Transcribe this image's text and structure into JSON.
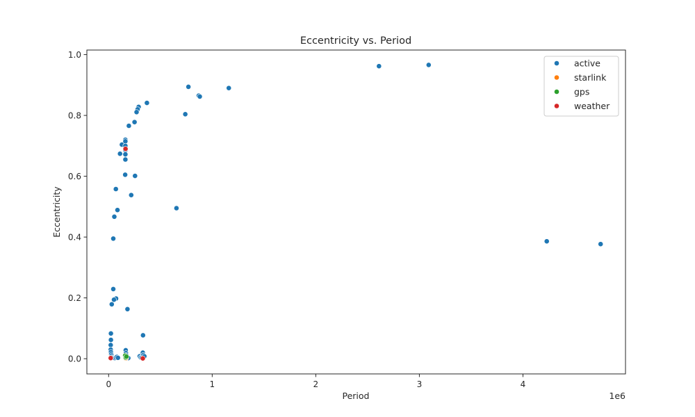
{
  "chart_data": {
    "type": "scatter",
    "title": "Eccentricity vs. Period",
    "xlabel": "Period",
    "ylabel": "Eccentricity",
    "x_offset_label": "1e6",
    "xlim": [
      -210000,
      4990000
    ],
    "ylim": [
      -0.05,
      1.015
    ],
    "x_ticks": [
      0,
      1000000,
      2000000,
      3000000,
      4000000
    ],
    "x_tick_labels": [
      "0",
      "1",
      "2",
      "3",
      "4"
    ],
    "y_ticks": [
      0.0,
      0.2,
      0.4,
      0.6,
      0.8,
      1.0
    ],
    "y_tick_labels": [
      "0.0",
      "0.2",
      "0.4",
      "0.6",
      "0.8",
      "1.0"
    ],
    "grid": false,
    "legend_position": "top-right",
    "series": [
      {
        "name": "active",
        "color": "#1f77b4",
        "points": [
          [
            3090000,
            0.966
          ],
          [
            2610000,
            0.962
          ],
          [
            4230000,
            0.386
          ],
          [
            4750000,
            0.377
          ],
          [
            770000,
            0.894
          ],
          [
            1160000,
            0.89
          ],
          [
            870000,
            0.865
          ],
          [
            880000,
            0.862
          ],
          [
            740000,
            0.804
          ],
          [
            655000,
            0.495
          ],
          [
            370000,
            0.841
          ],
          [
            290000,
            0.828
          ],
          [
            280000,
            0.82
          ],
          [
            270000,
            0.811
          ],
          [
            250000,
            0.778
          ],
          [
            195000,
            0.766
          ],
          [
            255000,
            0.601
          ],
          [
            218000,
            0.538
          ],
          [
            128000,
            0.704
          ],
          [
            162000,
            0.72
          ],
          [
            162000,
            0.715
          ],
          [
            162000,
            0.7
          ],
          [
            162000,
            0.686
          ],
          [
            162000,
            0.672
          ],
          [
            110000,
            0.674
          ],
          [
            162000,
            0.655
          ],
          [
            160000,
            0.605
          ],
          [
            70000,
            0.558
          ],
          [
            85000,
            0.489
          ],
          [
            55000,
            0.467
          ],
          [
            45000,
            0.395
          ],
          [
            45000,
            0.229
          ],
          [
            72000,
            0.198
          ],
          [
            52000,
            0.194
          ],
          [
            30000,
            0.179
          ],
          [
            182000,
            0.163
          ],
          [
            332000,
            0.077
          ],
          [
            22000,
            0.083
          ],
          [
            22000,
            0.062
          ],
          [
            20000,
            0.045
          ],
          [
            20000,
            0.03
          ],
          [
            22000,
            0.022
          ],
          [
            25000,
            0.015
          ],
          [
            30000,
            0.01
          ],
          [
            35000,
            0.005
          ],
          [
            45000,
            0.003
          ],
          [
            60000,
            0.002
          ],
          [
            70000,
            0.004
          ],
          [
            80000,
            0.006
          ],
          [
            90000,
            0.003
          ],
          [
            165000,
            0.028
          ],
          [
            168000,
            0.018
          ],
          [
            170000,
            0.012
          ],
          [
            175000,
            0.006
          ],
          [
            190000,
            0.002
          ],
          [
            300000,
            0.008
          ],
          [
            310000,
            0.004
          ],
          [
            320000,
            0.003
          ],
          [
            330000,
            0.02
          ],
          [
            335000,
            0.012
          ],
          [
            340000,
            0.006
          ],
          [
            345000,
            0.008
          ]
        ]
      },
      {
        "name": "starlink",
        "color": "#ff7f0e",
        "points": [
          [
            165000,
            0.001
          ],
          [
            170000,
            0.002
          ]
        ]
      },
      {
        "name": "gps",
        "color": "#2ca02c",
        "points": [
          [
            160000,
            0.01
          ],
          [
            165000,
            0.004
          ],
          [
            172000,
            0.007
          ]
        ]
      },
      {
        "name": "weather",
        "color": "#d62728",
        "points": [
          [
            163000,
            0.69
          ],
          [
            20000,
            0.002
          ],
          [
            330000,
            0.001
          ]
        ]
      }
    ]
  }
}
